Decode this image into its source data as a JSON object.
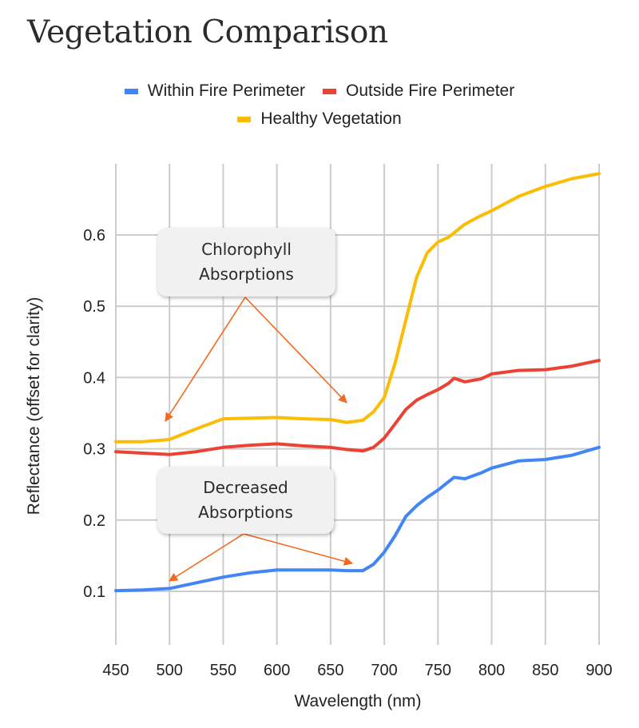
{
  "page": {
    "title": "Vegetation Comparison"
  },
  "colors": {
    "within": "#4285f4",
    "outside": "#ea4335",
    "healthy": "#fbbc04",
    "grid": "#cccccc",
    "arrow": "#f26b21",
    "callout_bg": "#f1f1f1"
  },
  "legend": [
    {
      "label": "Within Fire Perimeter",
      "color": "#4285f4"
    },
    {
      "label": "Outside Fire Perimeter",
      "color": "#ea4335"
    },
    {
      "label": "Healthy Vegetation",
      "color": "#fbbc04"
    }
  ],
  "annotations": {
    "chlorophyll": {
      "line1": "Chlorophyll",
      "line2": "Absorptions"
    },
    "decreased": {
      "line1": "Decreased",
      "line2": "Absorptions"
    }
  },
  "chart_data": {
    "type": "line",
    "title": "Vegetation Comparison",
    "xlabel": "Wavelength (nm)",
    "ylabel": "Reflectance (offset for clarity)",
    "xlim": [
      450,
      900
    ],
    "ylim": [
      0.03,
      0.7
    ],
    "grid": true,
    "legend_position": "top",
    "xticks": [
      450,
      500,
      550,
      600,
      650,
      700,
      750,
      800,
      850,
      900
    ],
    "yticks": [
      0.1,
      0.2,
      0.3,
      0.4,
      0.5,
      0.6
    ],
    "ytick_labels": [
      "0.1",
      "0.2",
      "0.3",
      "0.4",
      "0.5",
      "0.6"
    ],
    "x": [
      450,
      475,
      500,
      525,
      550,
      575,
      600,
      625,
      650,
      665,
      680,
      690,
      700,
      710,
      720,
      730,
      740,
      750,
      760,
      765,
      775,
      790,
      800,
      825,
      850,
      875,
      900
    ],
    "series": [
      {
        "name": "Within Fire Perimeter",
        "color": "#4285f4",
        "values": [
          0.101,
          0.102,
          0.104,
          0.112,
          0.12,
          0.126,
          0.13,
          0.13,
          0.13,
          0.129,
          0.129,
          0.138,
          0.155,
          0.178,
          0.205,
          0.22,
          0.232,
          0.242,
          0.254,
          0.26,
          0.258,
          0.266,
          0.273,
          0.283,
          0.285,
          0.291,
          0.302
        ]
      },
      {
        "name": "Outside Fire Perimeter",
        "color": "#ea4335",
        "values": [
          0.296,
          0.294,
          0.292,
          0.296,
          0.302,
          0.305,
          0.307,
          0.304,
          0.302,
          0.299,
          0.297,
          0.302,
          0.315,
          0.335,
          0.355,
          0.368,
          0.376,
          0.383,
          0.392,
          0.399,
          0.394,
          0.398,
          0.405,
          0.41,
          0.411,
          0.416,
          0.424
        ]
      },
      {
        "name": "Healthy Vegetation",
        "color": "#fbbc04",
        "values": [
          0.31,
          0.31,
          0.313,
          0.328,
          0.342,
          0.343,
          0.344,
          0.342,
          0.341,
          0.337,
          0.34,
          0.352,
          0.372,
          0.42,
          0.48,
          0.54,
          0.575,
          0.59,
          0.597,
          0.603,
          0.615,
          0.627,
          0.634,
          0.654,
          0.668,
          0.679,
          0.686
        ]
      }
    ],
    "annotations": [
      {
        "text": "Chlorophyll Absorptions",
        "arrows_to": [
          [
            500,
            0.33
          ],
          [
            670,
            0.355
          ]
        ]
      },
      {
        "text": "Decreased Absorptions",
        "arrows_to": [
          [
            500,
            0.115
          ],
          [
            673,
            0.14
          ]
        ]
      }
    ]
  }
}
